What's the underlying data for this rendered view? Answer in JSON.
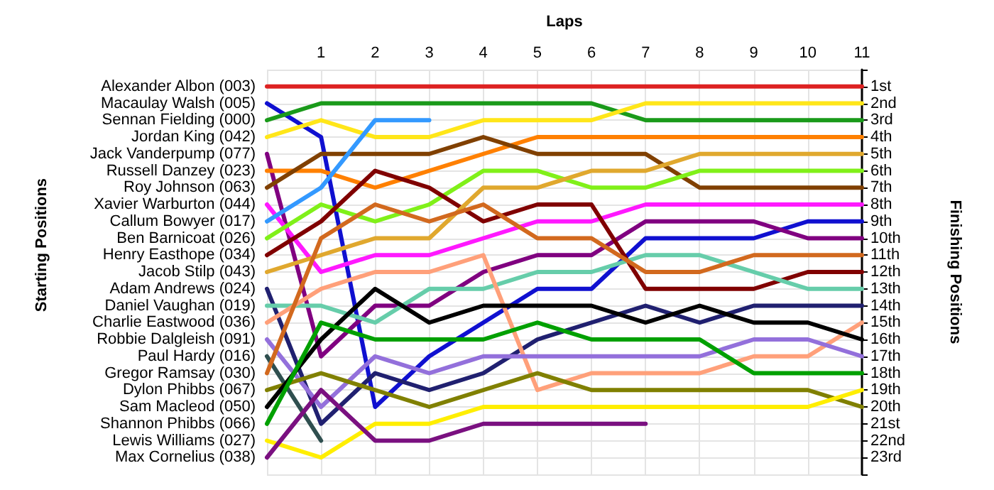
{
  "chart_data": {
    "type": "line",
    "xlabel": "Laps",
    "ylabel": "Finishing Positions",
    "annotations": [
      "Starting Positions"
    ],
    "x": [
      0,
      1,
      2,
      3,
      4,
      5,
      6,
      7,
      8,
      9,
      10,
      11
    ],
    "xlim": [
      0,
      11
    ],
    "xticks": [
      1,
      2,
      3,
      4,
      5,
      6,
      7,
      8,
      9,
      10,
      11
    ],
    "ylim": [
      24,
      0
    ],
    "yticks": [
      {
        "value": 1,
        "label": "1st"
      },
      {
        "value": 2,
        "label": "2nd"
      },
      {
        "value": 3,
        "label": "3rd"
      },
      {
        "value": 4,
        "label": "4th"
      },
      {
        "value": 5,
        "label": "5th"
      },
      {
        "value": 6,
        "label": "6th"
      },
      {
        "value": 7,
        "label": "7th"
      },
      {
        "value": 8,
        "label": "8th"
      },
      {
        "value": 9,
        "label": "9th"
      },
      {
        "value": 10,
        "label": "10th"
      },
      {
        "value": 11,
        "label": "11th"
      },
      {
        "value": 12,
        "label": "12th"
      },
      {
        "value": 13,
        "label": "13th"
      },
      {
        "value": 14,
        "label": "14th"
      },
      {
        "value": 15,
        "label": "15th"
      },
      {
        "value": 16,
        "label": "16th"
      },
      {
        "value": 17,
        "label": "17th"
      },
      {
        "value": 18,
        "label": "18th"
      },
      {
        "value": 19,
        "label": "19th"
      },
      {
        "value": 20,
        "label": "20th"
      },
      {
        "value": 21,
        "label": "21st"
      },
      {
        "value": 22,
        "label": "22nd"
      },
      {
        "value": 23,
        "label": "23rd"
      }
    ],
    "grid": true,
    "line_style": "solid",
    "legend": "left",
    "series": [
      {
        "name": "Alexander Albon (003)",
        "color": "#dd2222",
        "values": [
          1,
          1,
          1,
          1,
          1,
          1,
          1,
          1,
          1,
          1,
          1,
          1
        ]
      },
      {
        "name": "Macaulay Walsh (005)",
        "color": "#1010d0",
        "values": [
          2,
          4,
          20,
          17,
          15,
          13,
          13,
          10,
          10,
          10,
          9,
          9
        ]
      },
      {
        "name": "Sennan Fielding (000)",
        "color": "#1a9a1a",
        "values": [
          3,
          2,
          2,
          2,
          2,
          2,
          2,
          3,
          3,
          3,
          3,
          3
        ]
      },
      {
        "name": "Jordan King (042)",
        "color": "#ffe619",
        "values": [
          4,
          3,
          4,
          4,
          3,
          3,
          3,
          2,
          2,
          2,
          2,
          2
        ]
      },
      {
        "name": "Jack Vanderpump (077)",
        "color": "#800080",
        "values": [
          5,
          17,
          14,
          14,
          12,
          11,
          11,
          9,
          9,
          9,
          10,
          10
        ]
      },
      {
        "name": "Russell Danzey (023)",
        "color": "#ff8000",
        "values": [
          6,
          6,
          7,
          6,
          5,
          4,
          4,
          4,
          4,
          4,
          4,
          4
        ]
      },
      {
        "name": "Roy Johnson (063)",
        "color": "#804000",
        "values": [
          7,
          5,
          5,
          5,
          4,
          5,
          5,
          5,
          7,
          7,
          7,
          7
        ]
      },
      {
        "name": "Xavier Warburton (044)",
        "color": "#ff19ff",
        "values": [
          8,
          12,
          11,
          11,
          10,
          9,
          9,
          8,
          8,
          8,
          8,
          8
        ]
      },
      {
        "name": "Callum Bowyer (017)",
        "color": "#3399ff",
        "values": [
          9,
          7,
          3,
          3,
          null,
          null,
          null,
          null,
          null,
          null,
          null,
          null
        ]
      },
      {
        "name": "Ben Barnicoat (026)",
        "color": "#80f019",
        "values": [
          10,
          8,
          9,
          8,
          6,
          6,
          7,
          7,
          6,
          6,
          6,
          6
        ]
      },
      {
        "name": "Henry Easthope (034)",
        "color": "#800000",
        "values": [
          11,
          9,
          6,
          7,
          9,
          8,
          8,
          13,
          13,
          13,
          12,
          12
        ]
      },
      {
        "name": "Jacob Stilp (043)",
        "color": "#e0a82e",
        "values": [
          12,
          11,
          10,
          10,
          7,
          7,
          6,
          6,
          5,
          5,
          5,
          5
        ]
      },
      {
        "name": "Adam Andrews (024)",
        "color": "#202070",
        "values": [
          13,
          21,
          18,
          19,
          18,
          16,
          15,
          14,
          15,
          14,
          14,
          14
        ]
      },
      {
        "name": "Daniel Vaughan (019)",
        "color": "#66cdaa",
        "values": [
          14,
          14,
          15,
          13,
          13,
          12,
          12,
          11,
          11,
          12,
          13,
          13
        ]
      },
      {
        "name": "Charlie Eastwood (036)",
        "color": "#ffa07a",
        "values": [
          15,
          13,
          12,
          12,
          11,
          19,
          18,
          18,
          18,
          17,
          17,
          15
        ]
      },
      {
        "name": "Robbie Dalgleish (091)",
        "color": "#9370db",
        "values": [
          16,
          20,
          17,
          18,
          17,
          17,
          17,
          17,
          17,
          16,
          16,
          17
        ]
      },
      {
        "name": "Paul Hardy (016)",
        "color": "#2f4f4f",
        "values": [
          17,
          22,
          null,
          null,
          null,
          null,
          null,
          null,
          null,
          null,
          null,
          null
        ]
      },
      {
        "name": "Gregor Ramsay (030)",
        "color": "#d2691e",
        "values": [
          18,
          10,
          8,
          9,
          8,
          10,
          10,
          12,
          12,
          11,
          11,
          11
        ]
      },
      {
        "name": "Dylon Phibbs (067)",
        "color": "#808000",
        "values": [
          19,
          18,
          19,
          20,
          19,
          18,
          19,
          19,
          19,
          19,
          19,
          20
        ]
      },
      {
        "name": "Sam Macleod (050)",
        "color": "#000000",
        "values": [
          20,
          16,
          13,
          15,
          14,
          14,
          14,
          15,
          14,
          15,
          15,
          16
        ]
      },
      {
        "name": "Shannon Phibbs (066)",
        "color": "#00a000",
        "values": [
          21,
          15,
          16,
          16,
          16,
          15,
          16,
          16,
          16,
          18,
          18,
          18
        ]
      },
      {
        "name": "Lewis Williams (027)",
        "color": "#ffee00",
        "values": [
          22,
          23,
          21,
          21,
          20,
          20,
          20,
          20,
          20,
          20,
          20,
          19
        ]
      },
      {
        "name": "Max Cornelius (038)",
        "color": "#7a1080",
        "values": [
          23,
          19,
          22,
          22,
          21,
          21,
          21,
          21,
          null,
          null,
          null,
          null
        ]
      }
    ]
  }
}
